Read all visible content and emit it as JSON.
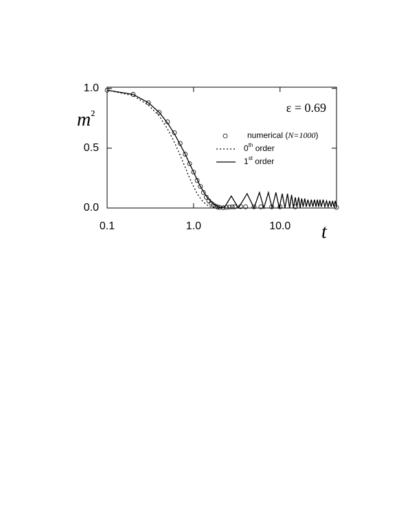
{
  "chart_data": {
    "type": "line",
    "y_label": "m²",
    "x_label": "t",
    "annotation": "ε = 0.69",
    "xlog": true,
    "xlim": [
      0.1,
      45
    ],
    "ylim": [
      0,
      1.01
    ],
    "xticks": [
      0.1,
      {
        "value": 1,
        "label": "1.0"
      },
      {
        "value": 10,
        "label": "10.0"
      }
    ],
    "yticks": [
      {
        "value": 0,
        "label": "0.0"
      },
      0.5,
      {
        "value": 1,
        "label": "1.0"
      }
    ],
    "legend": "upper right",
    "series": [
      {
        "name": "numerical (N=1000)",
        "style": "circle",
        "color": "#000000",
        "x": [
          0.1,
          0.2,
          0.3,
          0.4,
          0.5,
          0.6,
          0.7,
          0.8,
          0.9,
          1.0,
          1.1,
          1.2,
          1.3,
          1.4,
          1.5,
          1.6,
          1.7,
          1.8,
          1.9,
          2.0,
          2.2,
          2.4,
          2.6,
          2.8,
          3.0,
          3.5,
          4,
          5,
          6,
          8,
          10,
          15,
          45
        ],
        "values": [
          0.985,
          0.95,
          0.88,
          0.8,
          0.72,
          0.63,
          0.54,
          0.45,
          0.37,
          0.3,
          0.23,
          0.18,
          0.13,
          0.09,
          0.06,
          0.04,
          0.025,
          0.015,
          0.008,
          0.005,
          0.003,
          0.005,
          0.008,
          0.01,
          0.01,
          0.012,
          0.01,
          0.01,
          0.01,
          0.01,
          0.01,
          0.01,
          0.005
        ]
      },
      {
        "name": "0th order",
        "style": "dotted",
        "color": "#000000",
        "x": [
          0.1,
          0.2,
          0.3,
          0.4,
          0.5,
          0.6,
          0.7,
          0.8,
          0.9,
          1.0,
          1.1,
          1.2,
          1.3,
          1.4,
          1.5,
          1.7,
          2.0
        ],
        "values": [
          0.985,
          0.94,
          0.86,
          0.77,
          0.66,
          0.55,
          0.44,
          0.34,
          0.25,
          0.18,
          0.12,
          0.08,
          0.05,
          0.03,
          0.015,
          0.005,
          0.0
        ]
      },
      {
        "name": "1st order",
        "style": "solid",
        "color": "#000000",
        "x": [
          0.1,
          0.2,
          0.3,
          0.4,
          0.5,
          0.6,
          0.7,
          0.8,
          0.9,
          1.0,
          1.2,
          1.4,
          1.6,
          1.8,
          2.0,
          2.3,
          2.73,
          3.3,
          4.16,
          5.0,
          5.78,
          6.5,
          7.33,
          8.1,
          8.96,
          9.8,
          10.6,
          11.4,
          12.2,
          12.9,
          13.6,
          14.3,
          15,
          15.7,
          16.4,
          17.1,
          17.8,
          18.5,
          19.3,
          20.1,
          21,
          22,
          23,
          24,
          25,
          26,
          27,
          28,
          29,
          30,
          31.5,
          33,
          34.5,
          36,
          37.5,
          39,
          40.5,
          42,
          43.5,
          45
        ],
        "values": [
          0.985,
          0.95,
          0.88,
          0.8,
          0.71,
          0.62,
          0.53,
          0.45,
          0.37,
          0.3,
          0.18,
          0.1,
          0.05,
          0.02,
          0.005,
          0.01,
          0.1,
          0.0,
          0.12,
          0.0,
          0.13,
          0.0,
          0.13,
          0.0,
          0.13,
          0.0,
          0.12,
          0.0,
          0.12,
          0.0,
          0.11,
          0.0,
          0.09,
          0.01,
          0.09,
          0.0,
          0.08,
          0.01,
          0.08,
          0.01,
          0.07,
          0.01,
          0.07,
          0.01,
          0.07,
          0.01,
          0.07,
          0.01,
          0.07,
          0.01,
          0.07,
          0.01,
          0.06,
          0.01,
          0.06,
          0.01,
          0.06,
          0.01,
          0.06,
          0.01
        ]
      }
    ]
  }
}
